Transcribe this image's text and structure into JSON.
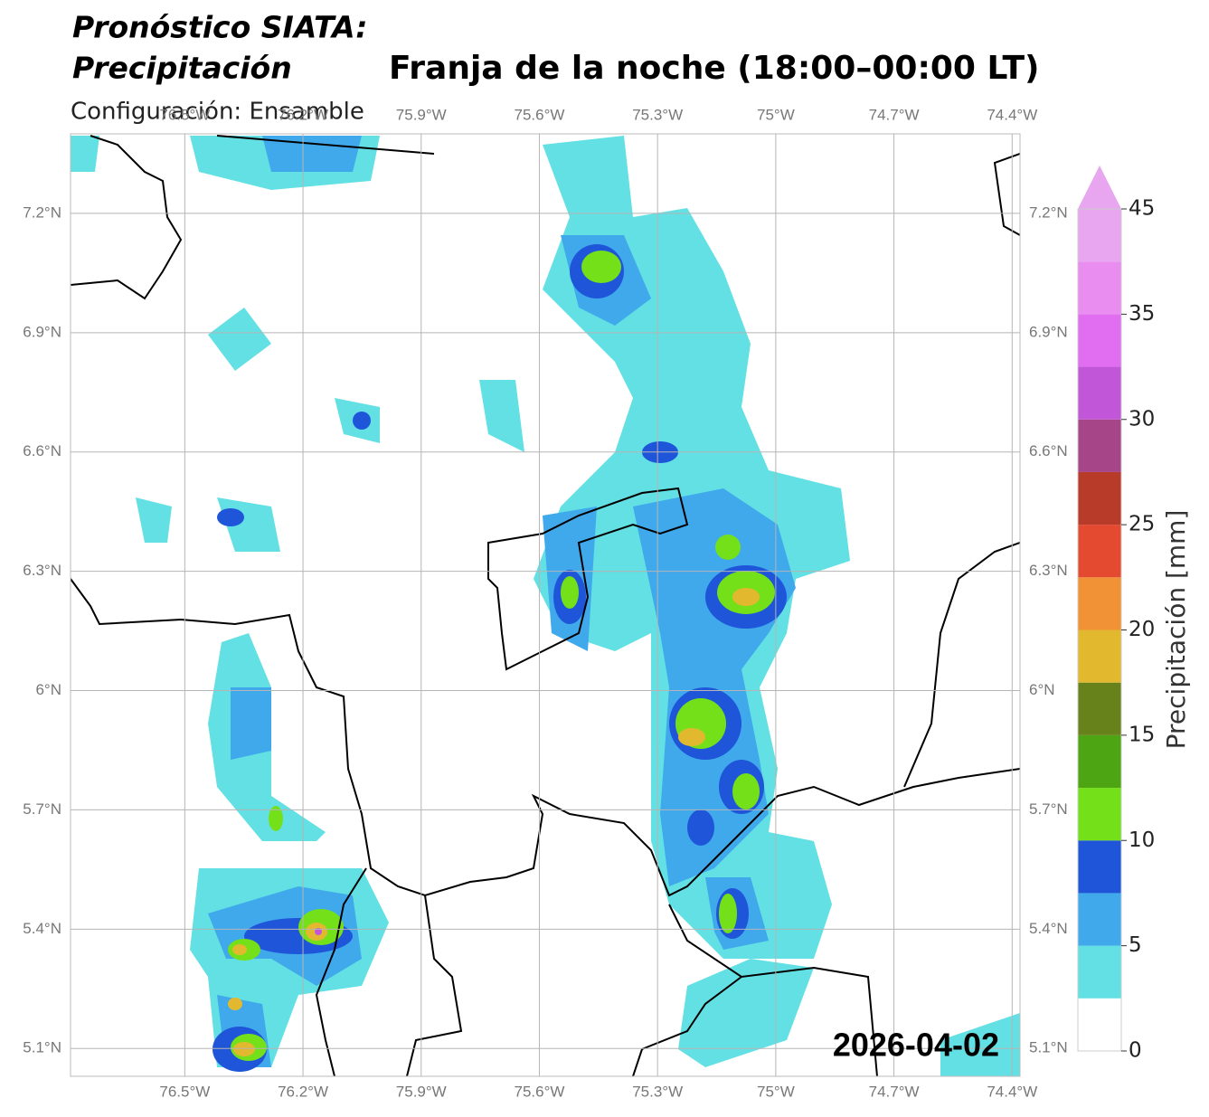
{
  "title_line1": "Pronóstico SIATA:",
  "title_line2": "Precipitación",
  "subtitle": "Franja de la noche (18:00–00:00 LT)",
  "configuration": "Configuración: Ensamble",
  "date": "2026-04-02",
  "map": {
    "xlim": [
      -76.79,
      -74.38
    ],
    "ylim": [
      5.03,
      7.4
    ],
    "xticks": [
      {
        "value": -76.5,
        "label": "76.5°W"
      },
      {
        "value": -76.2,
        "label": "76.2°W"
      },
      {
        "value": -75.9,
        "label": "75.9°W"
      },
      {
        "value": -75.6,
        "label": "75.6°W"
      },
      {
        "value": -75.3,
        "label": "75.3°W"
      },
      {
        "value": -75,
        "label": "75°W"
      },
      {
        "value": -74.7,
        "label": "74.7°W"
      },
      {
        "value": -74.4,
        "label": "74.4°W"
      }
    ],
    "yticks": [
      {
        "value": 5.1,
        "label": "5.1°N"
      },
      {
        "value": 5.4,
        "label": "5.4°N"
      },
      {
        "value": 5.7,
        "label": "5.7°N"
      },
      {
        "value": 6,
        "label": "6°N"
      },
      {
        "value": 6.3,
        "label": "6.3°N"
      },
      {
        "value": 6.6,
        "label": "6.6°N"
      },
      {
        "value": 6.9,
        "label": "6.9°N"
      },
      {
        "value": 7.2,
        "label": "7.2°N"
      }
    ],
    "grid": true
  },
  "colorbar": {
    "label": "Precipitación [mm]",
    "levels": [
      0,
      2.5,
      5,
      7.5,
      10,
      12.5,
      15,
      17.5,
      20,
      22.5,
      25,
      27.5,
      30,
      32.5,
      35,
      40,
      45
    ],
    "colors": [
      "#ffffff",
      "#62e0e3",
      "#3fa9ec",
      "#1f55d8",
      "#74e01a",
      "#4ea514",
      "#68821b",
      "#e2b92e",
      "#f09235",
      "#e34a30",
      "#b73b28",
      "#a64688",
      "#c157d8",
      "#e16ef0",
      "#e98df0",
      "#e9a6f0"
    ],
    "extend_color": "#e9a6f0",
    "ticks": [
      0,
      5,
      10,
      15,
      20,
      25,
      30,
      35,
      45
    ]
  }
}
